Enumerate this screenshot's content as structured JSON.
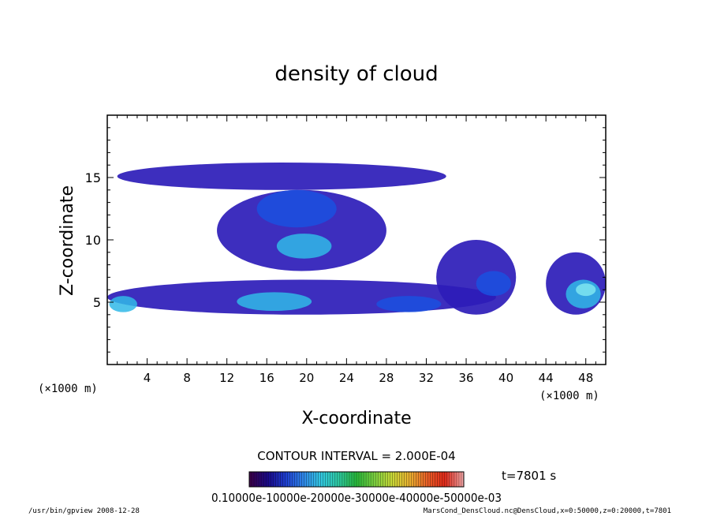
{
  "chart_data": {
    "type": "heatmap",
    "title": "density of cloud",
    "xlabel": "X-coordinate",
    "ylabel": "Z-coordinate",
    "x_unit": "(×1000 m)",
    "y_unit": "(×1000 m)",
    "xlim": [
      0,
      50
    ],
    "ylim": [
      0,
      20
    ],
    "x_ticks": [
      4,
      8,
      12,
      16,
      20,
      24,
      28,
      32,
      36,
      40,
      44,
      48
    ],
    "y_ticks": [
      5,
      10,
      15
    ],
    "contour_interval": "CONTOUR INTERVAL = 2.000E-04",
    "time_label": "t=7801 s",
    "colorbar": {
      "min": 0.0001,
      "max": 0.0006,
      "tick_labels_text": "0.10000e-10000e-20000e-30000e-40000e-50000e-03",
      "colors": [
        "#3a004a",
        "#1a0a8a",
        "#1f3fd0",
        "#2f86e8",
        "#32c8e0",
        "#2ec8a0",
        "#28b83a",
        "#7ad040",
        "#c8d838",
        "#e8b030",
        "#e86028",
        "#e02818",
        "#f0a0a0"
      ]
    },
    "regions": [
      {
        "x": [
          1.0,
          34.0
        ],
        "z": [
          14.0,
          16.2
        ],
        "level": 1
      },
      {
        "x": [
          11.0,
          28.0
        ],
        "z": [
          7.5,
          14.0
        ],
        "level": 1
      },
      {
        "x": [
          17.0,
          22.5
        ],
        "z": [
          8.5,
          10.5
        ],
        "level": 3
      },
      {
        "x": [
          15.0,
          23.0
        ],
        "z": [
          11.0,
          14.0
        ],
        "level": 2
      },
      {
        "x": [
          0.0,
          39.0
        ],
        "z": [
          4.0,
          6.8
        ],
        "level": 1
      },
      {
        "x": [
          13.0,
          20.5
        ],
        "z": [
          4.3,
          5.8
        ],
        "level": 3
      },
      {
        "x": [
          27.0,
          33.5
        ],
        "z": [
          4.2,
          5.5
        ],
        "level": 2
      },
      {
        "x": [
          0.2,
          3.0
        ],
        "z": [
          4.2,
          5.5
        ],
        "level": 3
      },
      {
        "x": [
          33.0,
          41.0
        ],
        "z": [
          4.0,
          10.0
        ],
        "level": 1
      },
      {
        "x": [
          37.0,
          40.5
        ],
        "z": [
          5.5,
          7.5
        ],
        "level": 2
      },
      {
        "x": [
          44.0,
          50.0
        ],
        "z": [
          4.0,
          9.0
        ],
        "level": 1
      },
      {
        "x": [
          46.0,
          49.5
        ],
        "z": [
          4.5,
          6.8
        ],
        "level": 3
      },
      {
        "x": [
          47.0,
          49.0
        ],
        "z": [
          5.5,
          6.5
        ],
        "level": 4
      }
    ]
  },
  "footer": {
    "left": "/usr/bin/gpview   2008-12-28",
    "right": "MarsCond_DensCloud.nc@DensCloud,x=0:50000,z=0:20000,t=7801"
  }
}
